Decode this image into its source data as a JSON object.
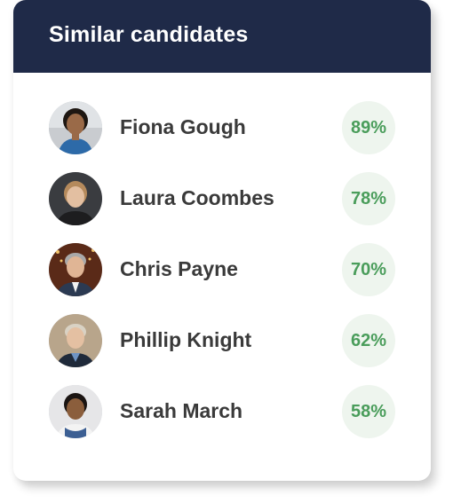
{
  "header": {
    "title": "Similar candidates"
  },
  "candidates": [
    {
      "name": "Fiona Gough",
      "match": "89%",
      "avatar": "avatar-fiona-photo"
    },
    {
      "name": "Laura Coombes",
      "match": "78%",
      "avatar": "avatar-laura-photo"
    },
    {
      "name": "Chris Payne",
      "match": "70%",
      "avatar": "avatar-chris-photo"
    },
    {
      "name": "Phillip Knight",
      "match": "62%",
      "avatar": "avatar-phillip-photo"
    },
    {
      "name": "Sarah March",
      "match": "58%",
      "avatar": "avatar-sarah-photo"
    }
  ],
  "colors": {
    "header_bg": "#1f2a48",
    "match_text": "#4a9d5b",
    "match_bg": "#eef5ee",
    "name_text": "#3a3a3a"
  }
}
